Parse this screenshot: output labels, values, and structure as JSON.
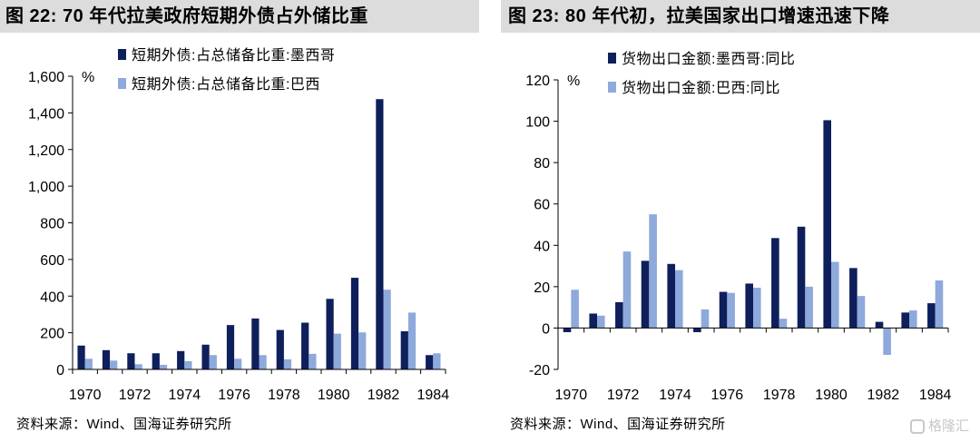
{
  "figures": [
    {
      "title": "图 22:  70 年代拉美政府短期外债占外储比重",
      "source": "资料来源：Wind、国海证券研究所"
    },
    {
      "title": "图 23:  80 年代初，拉美国家出口增速迅速下降",
      "source": "资料来源：Wind、国海证券研究所"
    }
  ],
  "watermark": "格隆汇",
  "chart_data": [
    {
      "type": "bar",
      "title": "",
      "ylabel": "%",
      "xlabel": "",
      "ylim": [
        0,
        1600
      ],
      "yticks": [
        0,
        200,
        400,
        600,
        800,
        1000,
        1200,
        1400,
        1600
      ],
      "ytick_labels": [
        "0",
        "200",
        "400",
        "600",
        "800",
        "1,000",
        "1,200",
        "1,400",
        "1,600"
      ],
      "x": [
        1970,
        1971,
        1972,
        1973,
        1974,
        1975,
        1976,
        1977,
        1978,
        1979,
        1980,
        1981,
        1982,
        1983,
        1984
      ],
      "xtick_labels": [
        "1970",
        "1972",
        "1974",
        "1976",
        "1978",
        "1980",
        "1982",
        "1984"
      ],
      "legend_position": "top-left",
      "grid": false,
      "series": [
        {
          "name": "短期外债:占总储备比重:墨西哥",
          "color": "#0e1f5b",
          "values": [
            130,
            105,
            88,
            88,
            100,
            135,
            242,
            278,
            215,
            255,
            385,
            500,
            1475,
            208,
            78
          ]
        },
        {
          "name": "短期外债:占总储备比重:巴西",
          "color": "#8ea9db",
          "values": [
            58,
            48,
            28,
            25,
            45,
            78,
            58,
            78,
            55,
            85,
            195,
            202,
            435,
            310,
            88
          ]
        }
      ]
    },
    {
      "type": "bar",
      "title": "",
      "ylabel": "%",
      "xlabel": "",
      "ylim": [
        -20,
        120
      ],
      "yticks": [
        -20,
        0,
        20,
        40,
        60,
        80,
        100,
        120
      ],
      "ytick_labels": [
        "-20",
        "0",
        "20",
        "40",
        "60",
        "80",
        "100",
        "120"
      ],
      "x": [
        1970,
        1971,
        1972,
        1973,
        1974,
        1975,
        1976,
        1977,
        1978,
        1979,
        1980,
        1981,
        1982,
        1983,
        1984
      ],
      "xtick_labels": [
        "1970",
        "1972",
        "1974",
        "1976",
        "1978",
        "1980",
        "1982",
        "1984"
      ],
      "legend_position": "top-left",
      "grid": false,
      "series": [
        {
          "name": "货物出口金额:墨西哥:同比",
          "color": "#0e1f5b",
          "values": [
            -2,
            7,
            12.5,
            32.5,
            31,
            -2,
            17.5,
            21.5,
            43.5,
            49,
            100.5,
            29,
            3,
            7.5,
            12
          ]
        },
        {
          "name": "货物出口金额:巴西:同比",
          "color": "#8ea9db",
          "values": [
            18.5,
            6,
            37,
            55,
            28,
            9,
            17,
            19.5,
            4.5,
            20,
            32,
            15.5,
            -13,
            8.5,
            23
          ]
        }
      ]
    }
  ]
}
